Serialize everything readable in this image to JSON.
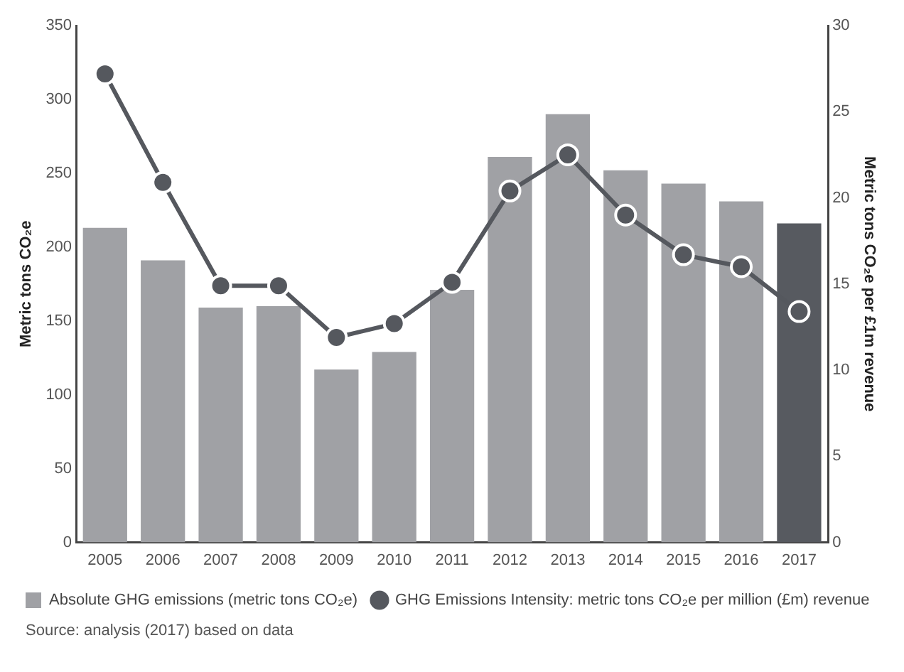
{
  "chart_data": {
    "type": "bar",
    "categories": [
      "2005",
      "2006",
      "2007",
      "2008",
      "2009",
      "2010",
      "2011",
      "2012",
      "2013",
      "2014",
      "2015",
      "2016",
      "2017"
    ],
    "series": [
      {
        "name": "Absolute GHG emissions (metric tons CO₂e)",
        "color": "#a0a1a5",
        "colors": [
          "#a0a1a5",
          "#a0a1a5",
          "#a0a1a5",
          "#a0a1a5",
          "#a0a1a5",
          "#a0a1a5",
          "#a0a1a5",
          "#a0a1a5",
          "#a0a1a5",
          "#a0a1a5",
          "#a0a1a5",
          "#a0a1a5",
          "#575a60"
        ],
        "values": [
          213,
          191,
          159,
          160,
          117,
          129,
          171,
          261,
          290,
          252,
          243,
          231,
          216
        ]
      },
      {
        "name": "GHG Emissions Intensity: metric tons CO₂e per million (£m) revenue",
        "type": "line",
        "axis": "y2",
        "color": "#55585e",
        "values": [
          27.2,
          20.9,
          14.9,
          14.9,
          11.9,
          12.7,
          15.1,
          20.4,
          22.5,
          19.0,
          16.7,
          16.0,
          13.4
        ]
      }
    ],
    "ylabel": "Metric tons CO₂e",
    "y2label": "Metric tons CO₂e per £1m revenue",
    "ylim": [
      0,
      350
    ],
    "yticks": [
      0,
      50,
      100,
      150,
      200,
      250,
      300,
      350
    ],
    "y2lim": [
      0,
      30
    ],
    "y2ticks": [
      0,
      5,
      10,
      15,
      20,
      25,
      30
    ],
    "grid": false,
    "legend": "bottom",
    "marker": "circle",
    "line_style": "solid",
    "annotations": [
      "Source: analysis (2017) based on data"
    ]
  }
}
